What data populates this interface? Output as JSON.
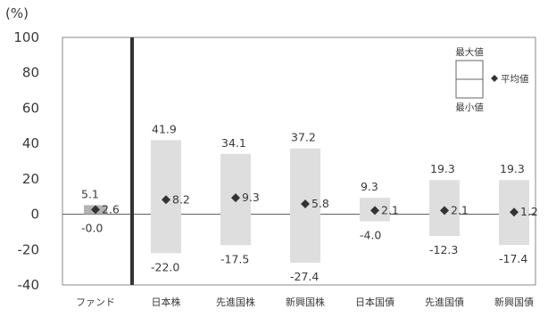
{
  "chart_data": {
    "type": "bar",
    "subtype": "floating-range-with-mean-marker",
    "unit_label": "(%)",
    "ylim": [
      -40,
      100
    ],
    "yticks": [
      100,
      80,
      60,
      40,
      20,
      0,
      -20,
      -40
    ],
    "ytick_labels": [
      "100",
      "80",
      "60",
      "40",
      "20",
      "0",
      "-20",
      "-40"
    ],
    "grid": false,
    "categories": [
      "ファンド",
      "日本株",
      "先進国株",
      "新興国株",
      "日本国債",
      "先進国債",
      "新興国債"
    ],
    "series": [
      {
        "name": "最大値",
        "values": [
          5.1,
          41.9,
          34.1,
          37.2,
          9.3,
          19.3,
          19.3
        ],
        "labels": [
          "5.1",
          "41.9",
          "34.1",
          "37.2",
          "9.3",
          "19.3",
          "19.3"
        ]
      },
      {
        "name": "最小値",
        "values": [
          0.0,
          -22.0,
          -17.5,
          -27.4,
          -4.0,
          -12.3,
          -17.4
        ],
        "labels": [
          "-0.0",
          "-22.0",
          "-17.5",
          "-27.4",
          "-4.0",
          "-12.3",
          "-17.4"
        ]
      },
      {
        "name": "平均値",
        "values": [
          2.6,
          8.2,
          9.3,
          5.8,
          2.1,
          2.1,
          1.2
        ],
        "labels": [
          "2.6",
          "8.2",
          "9.3",
          "5.8",
          "2.1",
          "2.1",
          "1.2"
        ]
      }
    ],
    "legend": {
      "max": "最大値",
      "min": "最小値",
      "avg": "平均値",
      "position": "top-right"
    },
    "colors": {
      "bar": "#dedede",
      "bar_fund": "#b3b3b3",
      "marker": "#333333",
      "axis": "#555555",
      "divider": "#333333",
      "frame": "#888888"
    }
  }
}
